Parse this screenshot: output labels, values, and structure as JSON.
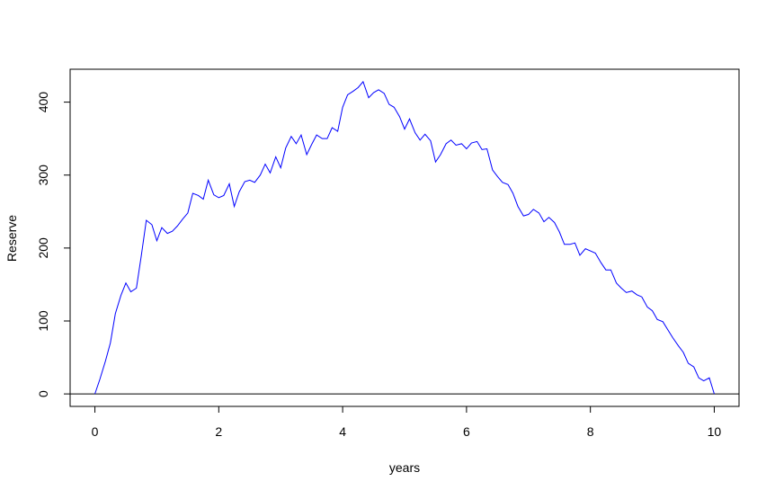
{
  "chart_data": {
    "type": "line",
    "xlabel": "years",
    "ylabel": "Reserve",
    "x": [
      0,
      0.08,
      0.17,
      0.25,
      0.33,
      0.42,
      0.5,
      0.58,
      0.67,
      0.75,
      0.83,
      0.92,
      1,
      1.08,
      1.17,
      1.25,
      1.33,
      1.42,
      1.5,
      1.58,
      1.67,
      1.75,
      1.83,
      1.92,
      2,
      2.08,
      2.17,
      2.25,
      2.33,
      2.42,
      2.5,
      2.58,
      2.67,
      2.75,
      2.83,
      2.92,
      3,
      3.08,
      3.17,
      3.25,
      3.33,
      3.42,
      3.5,
      3.58,
      3.67,
      3.75,
      3.83,
      3.92,
      4,
      4.08,
      4.17,
      4.25,
      4.33,
      4.42,
      4.5,
      4.58,
      4.67,
      4.75,
      4.83,
      4.92,
      5,
      5.08,
      5.17,
      5.25,
      5.33,
      5.42,
      5.5,
      5.58,
      5.67,
      5.75,
      5.83,
      5.92,
      6,
      6.08,
      6.17,
      6.25,
      6.33,
      6.42,
      6.5,
      6.58,
      6.67,
      6.75,
      6.83,
      6.92,
      7,
      7.08,
      7.17,
      7.25,
      7.33,
      7.42,
      7.5,
      7.58,
      7.67,
      7.75,
      7.83,
      7.92,
      8,
      8.08,
      8.17,
      8.25,
      8.33,
      8.42,
      8.5,
      8.58,
      8.67,
      8.75,
      8.83,
      8.92,
      9,
      9.08,
      9.17,
      9.25,
      9.33,
      9.42,
      9.5,
      9.58,
      9.67,
      9.75,
      9.83,
      9.92,
      10
    ],
    "values": [
      0,
      20,
      45,
      70,
      110,
      135,
      152,
      140,
      145,
      190,
      238,
      232,
      210,
      228,
      220,
      223,
      230,
      240,
      248,
      275,
      272,
      267,
      293,
      273,
      269,
      272,
      288,
      257,
      277,
      291,
      293,
      290,
      300,
      315,
      303,
      325,
      310,
      337,
      353,
      343,
      355,
      328,
      342,
      355,
      350,
      350,
      365,
      360,
      393,
      410,
      415,
      420,
      428,
      406,
      413,
      417,
      412,
      397,
      393,
      380,
      363,
      377,
      358,
      348,
      356,
      347,
      318,
      328,
      343,
      348,
      341,
      343,
      336,
      344,
      346,
      335,
      336,
      307,
      298,
      290,
      287,
      275,
      257,
      244,
      246,
      253,
      248,
      236,
      242,
      235,
      222,
      205,
      205,
      207,
      190,
      199,
      196,
      193,
      180,
      170,
      170,
      152,
      145,
      139,
      141,
      136,
      133,
      119,
      114,
      102,
      99,
      88,
      77,
      66,
      57,
      42,
      37,
      22,
      18,
      22,
      0
    ],
    "color": "#0000ff",
    "hline": 0,
    "hline_color": "#000000",
    "xlim": [
      -0.4,
      10.4
    ],
    "xticks": [
      0,
      2,
      4,
      6,
      8,
      10
    ],
    "ylim": [
      -17.1,
      445.1
    ],
    "yticks": [
      0,
      100,
      200,
      300,
      400
    ]
  }
}
